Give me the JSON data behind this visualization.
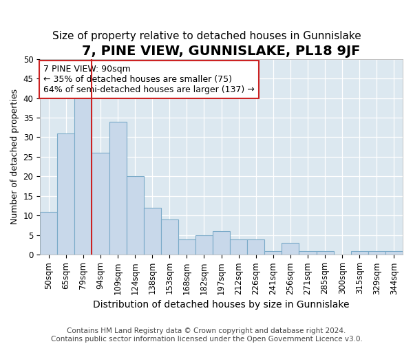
{
  "title": "7, PINE VIEW, GUNNISLAKE, PL18 9JF",
  "subtitle": "Size of property relative to detached houses in Gunnislake",
  "xlabel": "Distribution of detached houses by size in Gunnislake",
  "ylabel": "Number of detached properties",
  "categories": [
    "50sqm",
    "65sqm",
    "79sqm",
    "94sqm",
    "109sqm",
    "124sqm",
    "138sqm",
    "153sqm",
    "168sqm",
    "182sqm",
    "197sqm",
    "212sqm",
    "226sqm",
    "241sqm",
    "256sqm",
    "271sqm",
    "285sqm",
    "300sqm",
    "315sqm",
    "329sqm",
    "344sqm"
  ],
  "values": [
    11,
    31,
    41,
    26,
    34,
    20,
    12,
    9,
    4,
    5,
    6,
    4,
    4,
    1,
    3,
    1,
    1,
    0,
    1,
    1,
    1
  ],
  "bar_color": "#c8d8ea",
  "bar_edge_color": "#7aaac8",
  "vline_x_index": 2,
  "vline_color": "#cc2222",
  "annotation_text": "7 PINE VIEW: 90sqm\n← 35% of detached houses are smaller (75)\n64% of semi-detached houses are larger (137) →",
  "annotation_box_facecolor": "#ffffff",
  "annotation_box_edgecolor": "#cc2222",
  "ylim": [
    0,
    50
  ],
  "yticks": [
    0,
    5,
    10,
    15,
    20,
    25,
    30,
    35,
    40,
    45,
    50
  ],
  "plot_bg_color": "#dce8f0",
  "fig_bg_color": "#ffffff",
  "footer_line1": "Contains HM Land Registry data © Crown copyright and database right 2024.",
  "footer_line2": "Contains public sector information licensed under the Open Government Licence v3.0.",
  "title_fontsize": 14,
  "subtitle_fontsize": 11,
  "xlabel_fontsize": 10,
  "ylabel_fontsize": 9,
  "tick_fontsize": 8.5,
  "annotation_fontsize": 9,
  "footer_fontsize": 7.5
}
